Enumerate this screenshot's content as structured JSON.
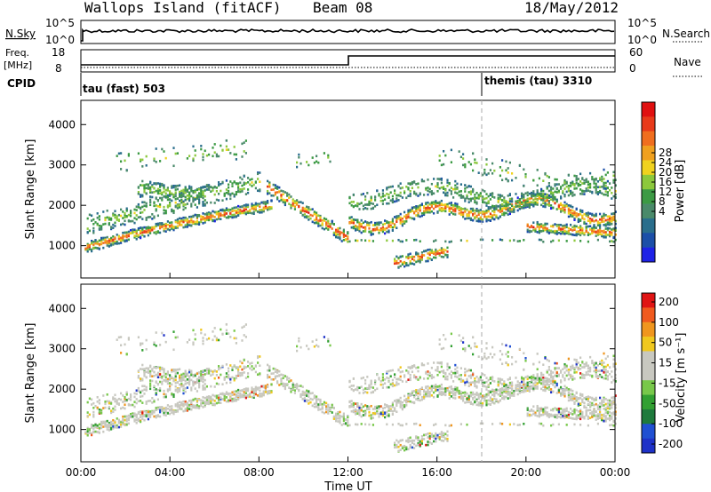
{
  "header": {
    "title_left": "Wallops Island (fitACF)",
    "title_center": "Beam 08",
    "title_right": "18/May/2012"
  },
  "top_panels": {
    "nsky_label": "N.Sky",
    "nsearch_label": "N.Search",
    "nsky_ticks": [
      "10^5",
      "10^0"
    ],
    "nsky_right_ticks": [
      "10^5",
      "10^0"
    ],
    "freq_label_1": "Freq.",
    "freq_label_2": "[MHz]",
    "freq_ticks": [
      "18",
      "8"
    ],
    "nave_label": "Nave",
    "nave_ticks": [
      "60",
      "0"
    ],
    "cpid_label": "CPID",
    "cpid_modes": [
      {
        "name": "tau (fast) 503",
        "start_hour": 0
      },
      {
        "name": "themis (tau) 3310",
        "start_hour": 18
      }
    ]
  },
  "chart_data": [
    {
      "type": "heatmap",
      "title": "Power",
      "xlabel": "",
      "ylabel": "Slant Range [km]",
      "xlim_hours": [
        0,
        24
      ],
      "ylim_km": [
        200,
        4600
      ],
      "y_ticks": [
        "4000",
        "3000",
        "2000",
        "1000"
      ],
      "colorbar": {
        "label": "Power [dB]",
        "ticks": [
          "28",
          "24",
          "20",
          "16",
          "12",
          "8",
          "4"
        ],
        "range": [
          0,
          32
        ],
        "colors": [
          "#1e22e6",
          "#1c4fa8",
          "#2a6e8c",
          "#4a8a6a",
          "#3c9a44",
          "#8cc83c",
          "#f0d21e",
          "#f0a01e",
          "#f06e1e",
          "#e83a1a",
          "#e01010"
        ]
      }
    },
    {
      "type": "heatmap",
      "title": "Velocity",
      "xlabel": "Time UT",
      "ylabel": "Slant Range [km]",
      "xlim_hours": [
        0,
        24
      ],
      "ylim_km": [
        200,
        4600
      ],
      "y_ticks": [
        "4000",
        "3000",
        "2000",
        "1000"
      ],
      "x_ticks": [
        "00:00",
        "04:00",
        "08:00",
        "12:00",
        "16:00",
        "20:00",
        "00:00"
      ],
      "colorbar": {
        "label": "Velocity [m s⁻¹]",
        "ticks": [
          "200",
          "100",
          "50",
          "15",
          "-15",
          "-50",
          "-100",
          "-200"
        ],
        "colors": [
          "#1e32c8",
          "#2050d2",
          "#1e7a3c",
          "#32a032",
          "#78c84a",
          "#c8c8c0",
          "#c8c8c0",
          "#f0c81e",
          "#f0961e",
          "#f05a1e",
          "#e01414"
        ]
      }
    }
  ]
}
